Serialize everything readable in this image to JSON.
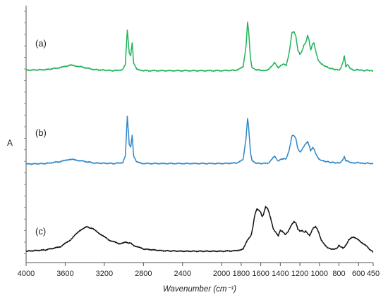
{
  "chart_data": {
    "type": "line",
    "title": "",
    "xlabel": "Wavenumber (cm⁻¹)",
    "ylabel": "A",
    "x_reversed": true,
    "xlim": [
      4000,
      450
    ],
    "x_ticks": [
      "4000",
      "3600",
      "3200",
      "2800",
      "2400",
      "2000",
      "1600",
      "1200",
      "800",
      "450"
    ],
    "x_ticks_extra": [
      {
        "value": 1800,
        "label": "1800"
      },
      {
        "value": 1400,
        "label": "1400"
      },
      {
        "value": 1000,
        "label": "1000"
      },
      {
        "value": 600,
        "label": "600"
      }
    ],
    "grid": false,
    "series": [
      {
        "name": "(a)",
        "color": "#1fb35a",
        "offset": 2,
        "points": [
          [
            4000,
            0.06
          ],
          [
            3800,
            0.07
          ],
          [
            3650,
            0.11
          ],
          [
            3550,
            0.16
          ],
          [
            3450,
            0.13
          ],
          [
            3300,
            0.07
          ],
          [
            3100,
            0.05
          ],
          [
            3010,
            0.07
          ],
          [
            2985,
            0.18
          ],
          [
            2965,
            0.85
          ],
          [
            2945,
            0.4
          ],
          [
            2930,
            0.35
          ],
          [
            2915,
            0.6
          ],
          [
            2900,
            0.2
          ],
          [
            2870,
            0.08
          ],
          [
            2800,
            0.05
          ],
          [
            2400,
            0.05
          ],
          [
            2000,
            0.05
          ],
          [
            1850,
            0.06
          ],
          [
            1780,
            0.12
          ],
          [
            1750,
            0.55
          ],
          [
            1735,
            1.0
          ],
          [
            1725,
            0.85
          ],
          [
            1705,
            0.3
          ],
          [
            1690,
            0.12
          ],
          [
            1650,
            0.07
          ],
          [
            1600,
            0.06
          ],
          [
            1580,
            0.05
          ],
          [
            1520,
            0.07
          ],
          [
            1480,
            0.15
          ],
          [
            1460,
            0.22
          ],
          [
            1445,
            0.18
          ],
          [
            1420,
            0.1
          ],
          [
            1390,
            0.16
          ],
          [
            1370,
            0.18
          ],
          [
            1340,
            0.15
          ],
          [
            1310,
            0.4
          ],
          [
            1280,
            0.8
          ],
          [
            1260,
            0.82
          ],
          [
            1240,
            0.72
          ],
          [
            1220,
            0.45
          ],
          [
            1200,
            0.38
          ],
          [
            1180,
            0.42
          ],
          [
            1160,
            0.55
          ],
          [
            1140,
            0.6
          ],
          [
            1120,
            0.75
          ],
          [
            1105,
            0.65
          ],
          [
            1090,
            0.45
          ],
          [
            1070,
            0.58
          ],
          [
            1055,
            0.6
          ],
          [
            1040,
            0.45
          ],
          [
            1010,
            0.25
          ],
          [
            980,
            0.18
          ],
          [
            950,
            0.15
          ],
          [
            900,
            0.1
          ],
          [
            850,
            0.08
          ],
          [
            800,
            0.06
          ],
          [
            780,
            0.1
          ],
          [
            760,
            0.22
          ],
          [
            745,
            0.35
          ],
          [
            730,
            0.12
          ],
          [
            710,
            0.18
          ],
          [
            690,
            0.1
          ],
          [
            650,
            0.06
          ],
          [
            600,
            0.07
          ],
          [
            550,
            0.05
          ],
          [
            500,
            0.06
          ],
          [
            450,
            0.04
          ]
        ]
      },
      {
        "name": "(b)",
        "color": "#2f87c8",
        "offset": 1,
        "points": [
          [
            4000,
            0.03
          ],
          [
            3800,
            0.04
          ],
          [
            3650,
            0.08
          ],
          [
            3550,
            0.13
          ],
          [
            3450,
            0.1
          ],
          [
            3300,
            0.05
          ],
          [
            3100,
            0.04
          ],
          [
            3010,
            0.06
          ],
          [
            2985,
            0.2
          ],
          [
            2965,
            1.02
          ],
          [
            2945,
            0.45
          ],
          [
            2930,
            0.38
          ],
          [
            2915,
            0.62
          ],
          [
            2900,
            0.2
          ],
          [
            2870,
            0.07
          ],
          [
            2800,
            0.04
          ],
          [
            2400,
            0.04
          ],
          [
            2000,
            0.04
          ],
          [
            1850,
            0.05
          ],
          [
            1780,
            0.12
          ],
          [
            1750,
            0.58
          ],
          [
            1735,
            0.98
          ],
          [
            1725,
            0.82
          ],
          [
            1705,
            0.28
          ],
          [
            1690,
            0.1
          ],
          [
            1650,
            0.05
          ],
          [
            1600,
            0.04
          ],
          [
            1520,
            0.05
          ],
          [
            1480,
            0.14
          ],
          [
            1460,
            0.2
          ],
          [
            1445,
            0.16
          ],
          [
            1420,
            0.09
          ],
          [
            1390,
            0.13
          ],
          [
            1370,
            0.14
          ],
          [
            1340,
            0.13
          ],
          [
            1310,
            0.32
          ],
          [
            1280,
            0.62
          ],
          [
            1260,
            0.63
          ],
          [
            1240,
            0.55
          ],
          [
            1220,
            0.35
          ],
          [
            1200,
            0.28
          ],
          [
            1180,
            0.32
          ],
          [
            1160,
            0.4
          ],
          [
            1140,
            0.45
          ],
          [
            1120,
            0.5
          ],
          [
            1105,
            0.42
          ],
          [
            1090,
            0.3
          ],
          [
            1070,
            0.38
          ],
          [
            1055,
            0.35
          ],
          [
            1040,
            0.25
          ],
          [
            1010,
            0.15
          ],
          [
            980,
            0.1
          ],
          [
            950,
            0.09
          ],
          [
            900,
            0.07
          ],
          [
            850,
            0.06
          ],
          [
            800,
            0.05
          ],
          [
            780,
            0.07
          ],
          [
            760,
            0.12
          ],
          [
            745,
            0.18
          ],
          [
            730,
            0.09
          ],
          [
            710,
            0.1
          ],
          [
            690,
            0.06
          ],
          [
            650,
            0.05
          ],
          [
            600,
            0.06
          ],
          [
            550,
            0.04
          ],
          [
            500,
            0.05
          ],
          [
            450,
            0.03
          ]
        ]
      },
      {
        "name": "(c)",
        "color": "#111111",
        "offset": 0,
        "points": [
          [
            4000,
            0.05
          ],
          [
            3800,
            0.08
          ],
          [
            3650,
            0.15
          ],
          [
            3550,
            0.3
          ],
          [
            3450,
            0.52
          ],
          [
            3380,
            0.6
          ],
          [
            3320,
            0.56
          ],
          [
            3250,
            0.45
          ],
          [
            3150,
            0.3
          ],
          [
            3050,
            0.22
          ],
          [
            2980,
            0.25
          ],
          [
            2930,
            0.23
          ],
          [
            2900,
            0.18
          ],
          [
            2800,
            0.1
          ],
          [
            2600,
            0.06
          ],
          [
            2400,
            0.05
          ],
          [
            2200,
            0.05
          ],
          [
            2000,
            0.05
          ],
          [
            1850,
            0.06
          ],
          [
            1780,
            0.1
          ],
          [
            1740,
            0.28
          ],
          [
            1700,
            0.4
          ],
          [
            1680,
            0.6
          ],
          [
            1660,
            0.88
          ],
          [
            1640,
            1.0
          ],
          [
            1620,
            0.98
          ],
          [
            1600,
            0.92
          ],
          [
            1585,
            0.82
          ],
          [
            1570,
            0.9
          ],
          [
            1550,
            1.05
          ],
          [
            1530,
            1.02
          ],
          [
            1500,
            0.8
          ],
          [
            1470,
            0.55
          ],
          [
            1440,
            0.45
          ],
          [
            1420,
            0.4
          ],
          [
            1400,
            0.52
          ],
          [
            1380,
            0.5
          ],
          [
            1350,
            0.42
          ],
          [
            1320,
            0.5
          ],
          [
            1290,
            0.62
          ],
          [
            1260,
            0.72
          ],
          [
            1240,
            0.68
          ],
          [
            1220,
            0.55
          ],
          [
            1200,
            0.5
          ],
          [
            1180,
            0.52
          ],
          [
            1160,
            0.48
          ],
          [
            1140,
            0.5
          ],
          [
            1120,
            0.45
          ],
          [
            1100,
            0.4
          ],
          [
            1080,
            0.5
          ],
          [
            1060,
            0.58
          ],
          [
            1040,
            0.6
          ],
          [
            1020,
            0.55
          ],
          [
            1000,
            0.42
          ],
          [
            980,
            0.3
          ],
          [
            950,
            0.2
          ],
          [
            920,
            0.14
          ],
          [
            880,
            0.1
          ],
          [
            850,
            0.09
          ],
          [
            820,
            0.12
          ],
          [
            800,
            0.18
          ],
          [
            780,
            0.15
          ],
          [
            760,
            0.12
          ],
          [
            740,
            0.15
          ],
          [
            720,
            0.22
          ],
          [
            700,
            0.3
          ],
          [
            680,
            0.35
          ],
          [
            650,
            0.36
          ],
          [
            620,
            0.34
          ],
          [
            600,
            0.3
          ],
          [
            570,
            0.25
          ],
          [
            540,
            0.2
          ],
          [
            510,
            0.15
          ],
          [
            480,
            0.08
          ],
          [
            460,
            0.05
          ],
          [
            450,
            0.02
          ]
        ]
      }
    ]
  }
}
